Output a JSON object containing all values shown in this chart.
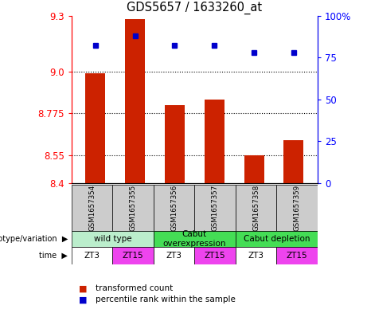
{
  "title": "GDS5657 / 1633260_at",
  "samples": [
    "GSM1657354",
    "GSM1657355",
    "GSM1657356",
    "GSM1657357",
    "GSM1657358",
    "GSM1657359"
  ],
  "transformed_count": [
    8.99,
    9.28,
    8.82,
    8.85,
    8.55,
    8.63
  ],
  "percentile_rank": [
    82,
    88,
    82,
    82,
    78,
    78
  ],
  "ylim_left": [
    8.4,
    9.3
  ],
  "ylim_right": [
    0,
    100
  ],
  "yticks_left": [
    8.4,
    8.55,
    8.775,
    9.0,
    9.3
  ],
  "yticks_right": [
    0,
    25,
    50,
    75,
    100
  ],
  "ytick_labels_right": [
    "0",
    "25",
    "50",
    "75",
    "100%"
  ],
  "bar_color": "#cc2200",
  "dot_color": "#0000cc",
  "bar_width": 0.5,
  "time_labels": [
    "ZT3",
    "ZT15",
    "ZT3",
    "ZT15",
    "ZT3",
    "ZT15"
  ],
  "time_colors": [
    "#ffffff",
    "#ee44ee",
    "#ffffff",
    "#ee44ee",
    "#ffffff",
    "#ee44ee"
  ],
  "genotype_label": "genotype/variation",
  "time_row_label": "time",
  "legend_bar_label": "transformed count",
  "legend_dot_label": "percentile rank within the sample",
  "grid_color": "black",
  "sample_box_color": "#cccccc",
  "group_configs": [
    {
      "start": 0,
      "end": 2,
      "label": "wild type",
      "color": "#bbeecc"
    },
    {
      "start": 2,
      "end": 4,
      "label": "Cabut\noverexpression",
      "color": "#44dd55"
    },
    {
      "start": 4,
      "end": 6,
      "label": "Cabut depletion",
      "color": "#44dd55"
    }
  ]
}
